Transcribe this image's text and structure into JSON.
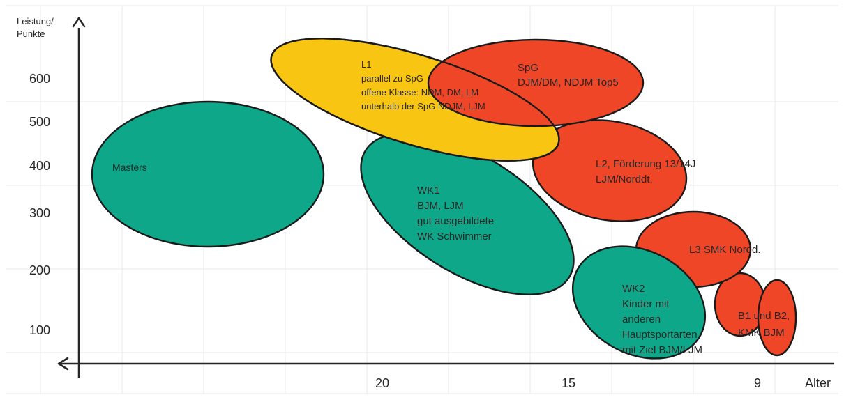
{
  "colors": {
    "background": "#ffffff",
    "grid": "#e8e8e8",
    "axis": "#262626",
    "yellow": "#f9c513",
    "red": "#ef4627",
    "green": "#0ea789",
    "outline": "#1a1a1a",
    "text": "#262626"
  },
  "axes": {
    "y_label_line1": "Leistung/",
    "y_label_line2": "Punkte",
    "x_label": "Alter",
    "y_ticks": [
      "600",
      "500",
      "400",
      "300",
      "200",
      "100"
    ],
    "x_ticks": [
      "20",
      "15",
      "9"
    ]
  },
  "groups": {
    "masters": {
      "lines": [
        "Masters"
      ]
    },
    "wk1": {
      "lines": [
        "WK1",
        "BJM, LJM",
        "gut ausgebildete",
        "WK Schwimmer"
      ]
    },
    "wk2": {
      "lines": [
        "WK2",
        "Kinder mit",
        "anderen",
        "Hauptsportarten,",
        "mit Ziel BJM/LJM"
      ]
    },
    "l1": {
      "lines": [
        "L1",
        "parallel zu SpG",
        "offene Klasse: NDM, DM, LM",
        "",
        "unterhalb der SpG NDJM, LJM"
      ]
    },
    "spg": {
      "lines": [
        "SpG",
        "DJM/DM, NDJM Top5"
      ]
    },
    "l2": {
      "lines": [
        "L2, Förderung 13/14J",
        "LJM/Norddt."
      ]
    },
    "l3": {
      "lines": [
        "L3 SMK Nordd."
      ]
    },
    "b1b2": {
      "lines": [
        "B1 und B2,",
        "KMK BJM"
      ]
    }
  }
}
